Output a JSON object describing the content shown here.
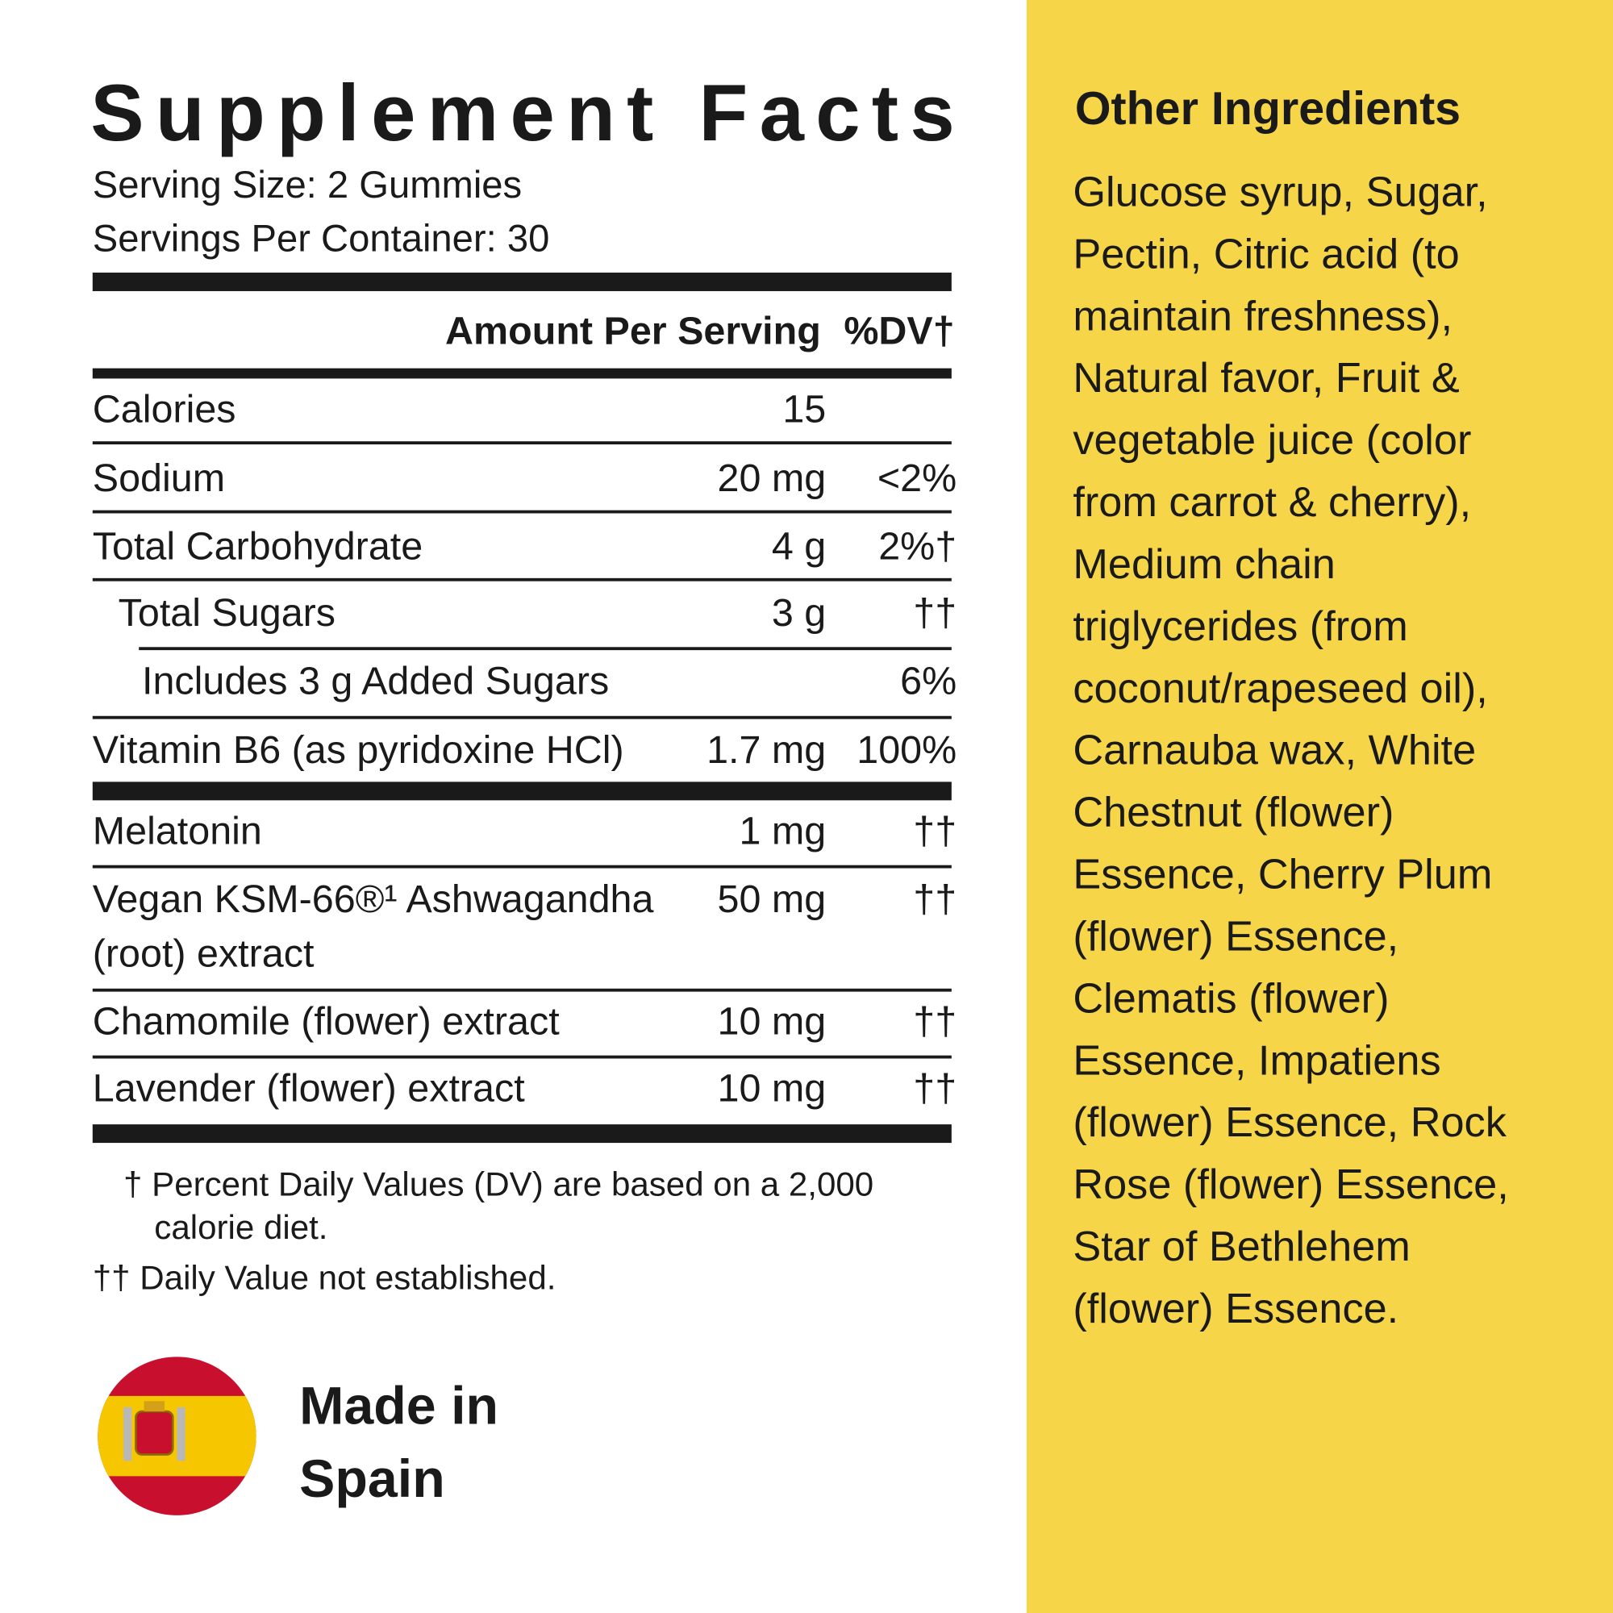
{
  "facts": {
    "title": "Supplement Facts",
    "serving_size": "Serving Size: 2 Gummies",
    "servings_per_container": "Servings Per Container: 30",
    "header": {
      "amount": "Amount Per Serving",
      "dv": "%DV†"
    },
    "rows": [
      {
        "name": [
          "Calories"
        ],
        "amount": "15"
      },
      {
        "name": [
          "Sodium"
        ],
        "amount": "20 mg",
        "dv": "<2%"
      },
      {
        "name": [
          "Total Carbohydrate"
        ],
        "amount": "4 g",
        "dv": "2%†"
      },
      {
        "name": [
          "Total Sugars"
        ],
        "amount": "3 g",
        "dv": "††"
      },
      {
        "name": [
          "Includes 3 g Added Sugars"
        ],
        "dv": "6%"
      },
      {
        "name": [
          "Vitamin B6 (as pyridoxine HCl)"
        ],
        "amount": "1.7 mg",
        "dv": "100%"
      },
      {
        "name": [
          "Melatonin"
        ],
        "amount": "1 mg",
        "dv": "††"
      },
      {
        "name": [
          "Vegan KSM-66®¹ Ashwagandha",
          "(root) extract"
        ],
        "amount": "50 mg",
        "dv": "††"
      },
      {
        "name": [
          "Chamomile (flower) extract"
        ],
        "amount": "10 mg",
        "dv": "††"
      },
      {
        "name": [
          "Lavender (flower) extract"
        ],
        "amount": "10 mg",
        "dv": "††"
      }
    ],
    "footnotes": [
      "† Percent Daily Values (DV) are based on a 2,000",
      "calorie diet.",
      "†† Daily Value not established."
    ]
  },
  "origin": [
    "Made in",
    "Spain"
  ],
  "other_ingredients": {
    "title": "Other Ingredients",
    "lines": [
      "Glucose syrup, Sugar,",
      "Pectin, Citric acid (to",
      "maintain freshness),",
      "Natural favor, Fruit &",
      "vegetable juice (color",
      "from carrot & cherry),",
      "Medium chain",
      "triglycerides (from",
      "coconut/rapeseed oil),",
      "Carnauba wax, White",
      "Chestnut (flower)",
      "Essence, Cherry Plum",
      "(flower) Essence,",
      "Clematis (flower)",
      "Essence, Impatiens",
      "(flower) Essence, Rock",
      "Rose (flower) Essence,",
      "Star of Bethlehem",
      "(flower) Essence."
    ]
  }
}
